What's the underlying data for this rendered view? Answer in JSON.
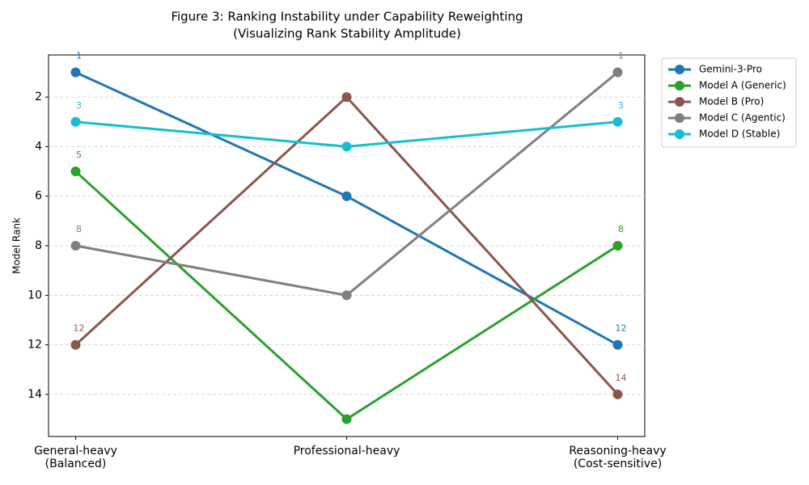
{
  "chart_data": {
    "type": "line",
    "title": "Figure 3: Ranking Instability under Capability Reweighting",
    "subtitle": "(Visualizing Rank Stability Amplitude)",
    "y_label": "Model Rank",
    "categories": [
      "General-heavy\n(Balanced)",
      "Professional-heavy",
      "Reasoning-heavy\n(Cost-sensitive)"
    ],
    "series": [
      {
        "name": "Gemini-3-Pro",
        "color": "#1f77b4",
        "values": [
          1,
          6,
          12
        ]
      },
      {
        "name": "Model A (Generic)",
        "color": "#2ca02c",
        "values": [
          5,
          15,
          8
        ]
      },
      {
        "name": "Model B (Pro)",
        "color": "#8c564b",
        "values": [
          12,
          2,
          14
        ]
      },
      {
        "name": "Model C (Agentic)",
        "color": "#7f7f7f",
        "values": [
          8,
          10,
          1
        ]
      },
      {
        "name": "Model D (Stable)",
        "color": "#17becf",
        "values": [
          3,
          4,
          3
        ]
      }
    ],
    "ylim": [
      15.7,
      0.3
    ],
    "yticks": [
      2,
      4,
      6,
      8,
      10,
      12,
      14
    ],
    "grid": true,
    "data_labels": "ends",
    "legend": "outside-upper-right"
  }
}
